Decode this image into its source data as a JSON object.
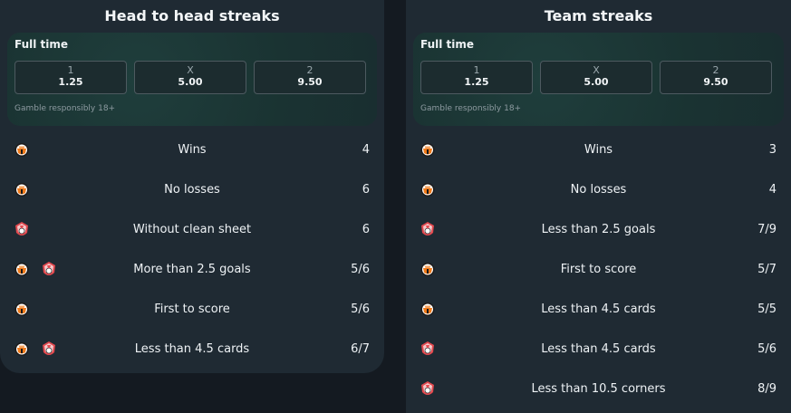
{
  "left": {
    "title": "Head to head streaks",
    "odds": {
      "label": "Full time",
      "options": [
        {
          "key": "1",
          "value": "1.25"
        },
        {
          "key": "X",
          "value": "5.00"
        },
        {
          "key": "2",
          "value": "9.50"
        }
      ],
      "note": "Gamble responsibly 18+"
    },
    "streaks": [
      {
        "label": "Wins",
        "value": "4",
        "teams": [
          "shakhtar"
        ]
      },
      {
        "label": "No losses",
        "value": "6",
        "teams": [
          "shakhtar"
        ]
      },
      {
        "label": "Without clean sheet",
        "value": "6",
        "teams": [
          "zorya"
        ]
      },
      {
        "label": "More than 2.5 goals",
        "value": "5/6",
        "teams": [
          "shakhtar",
          "zorya"
        ]
      },
      {
        "label": "First to score",
        "value": "5/6",
        "teams": [
          "shakhtar"
        ]
      },
      {
        "label": "Less than 4.5 cards",
        "value": "6/7",
        "teams": [
          "shakhtar",
          "zorya"
        ]
      }
    ]
  },
  "right": {
    "title": "Team streaks",
    "odds": {
      "label": "Full time",
      "options": [
        {
          "key": "1",
          "value": "1.25"
        },
        {
          "key": "X",
          "value": "5.00"
        },
        {
          "key": "2",
          "value": "9.50"
        }
      ],
      "note": "Gamble responsibly 18+"
    },
    "streaks": [
      {
        "label": "Wins",
        "value": "3",
        "teams": [
          "shakhtar"
        ]
      },
      {
        "label": "No losses",
        "value": "4",
        "teams": [
          "shakhtar"
        ]
      },
      {
        "label": "Less than 2.5 goals",
        "value": "7/9",
        "teams": [
          "zorya"
        ]
      },
      {
        "label": "First to score",
        "value": "5/7",
        "teams": [
          "shakhtar"
        ]
      },
      {
        "label": "Less than 4.5 cards",
        "value": "5/5",
        "teams": [
          "shakhtar"
        ]
      },
      {
        "label": "Less than 4.5 cards",
        "value": "5/6",
        "teams": [
          "zorya"
        ]
      },
      {
        "label": "Less than 10.5 corners",
        "value": "8/9",
        "teams": [
          "zorya"
        ]
      }
    ]
  },
  "icons": {
    "shakhtar": {
      "name": "shakhtar-crest-icon",
      "primary": "#f07a1a",
      "secondary": "#1b1b1b"
    },
    "zorya": {
      "name": "zorya-crest-icon",
      "primary": "#e2494f",
      "secondary": "#ffffff"
    }
  }
}
